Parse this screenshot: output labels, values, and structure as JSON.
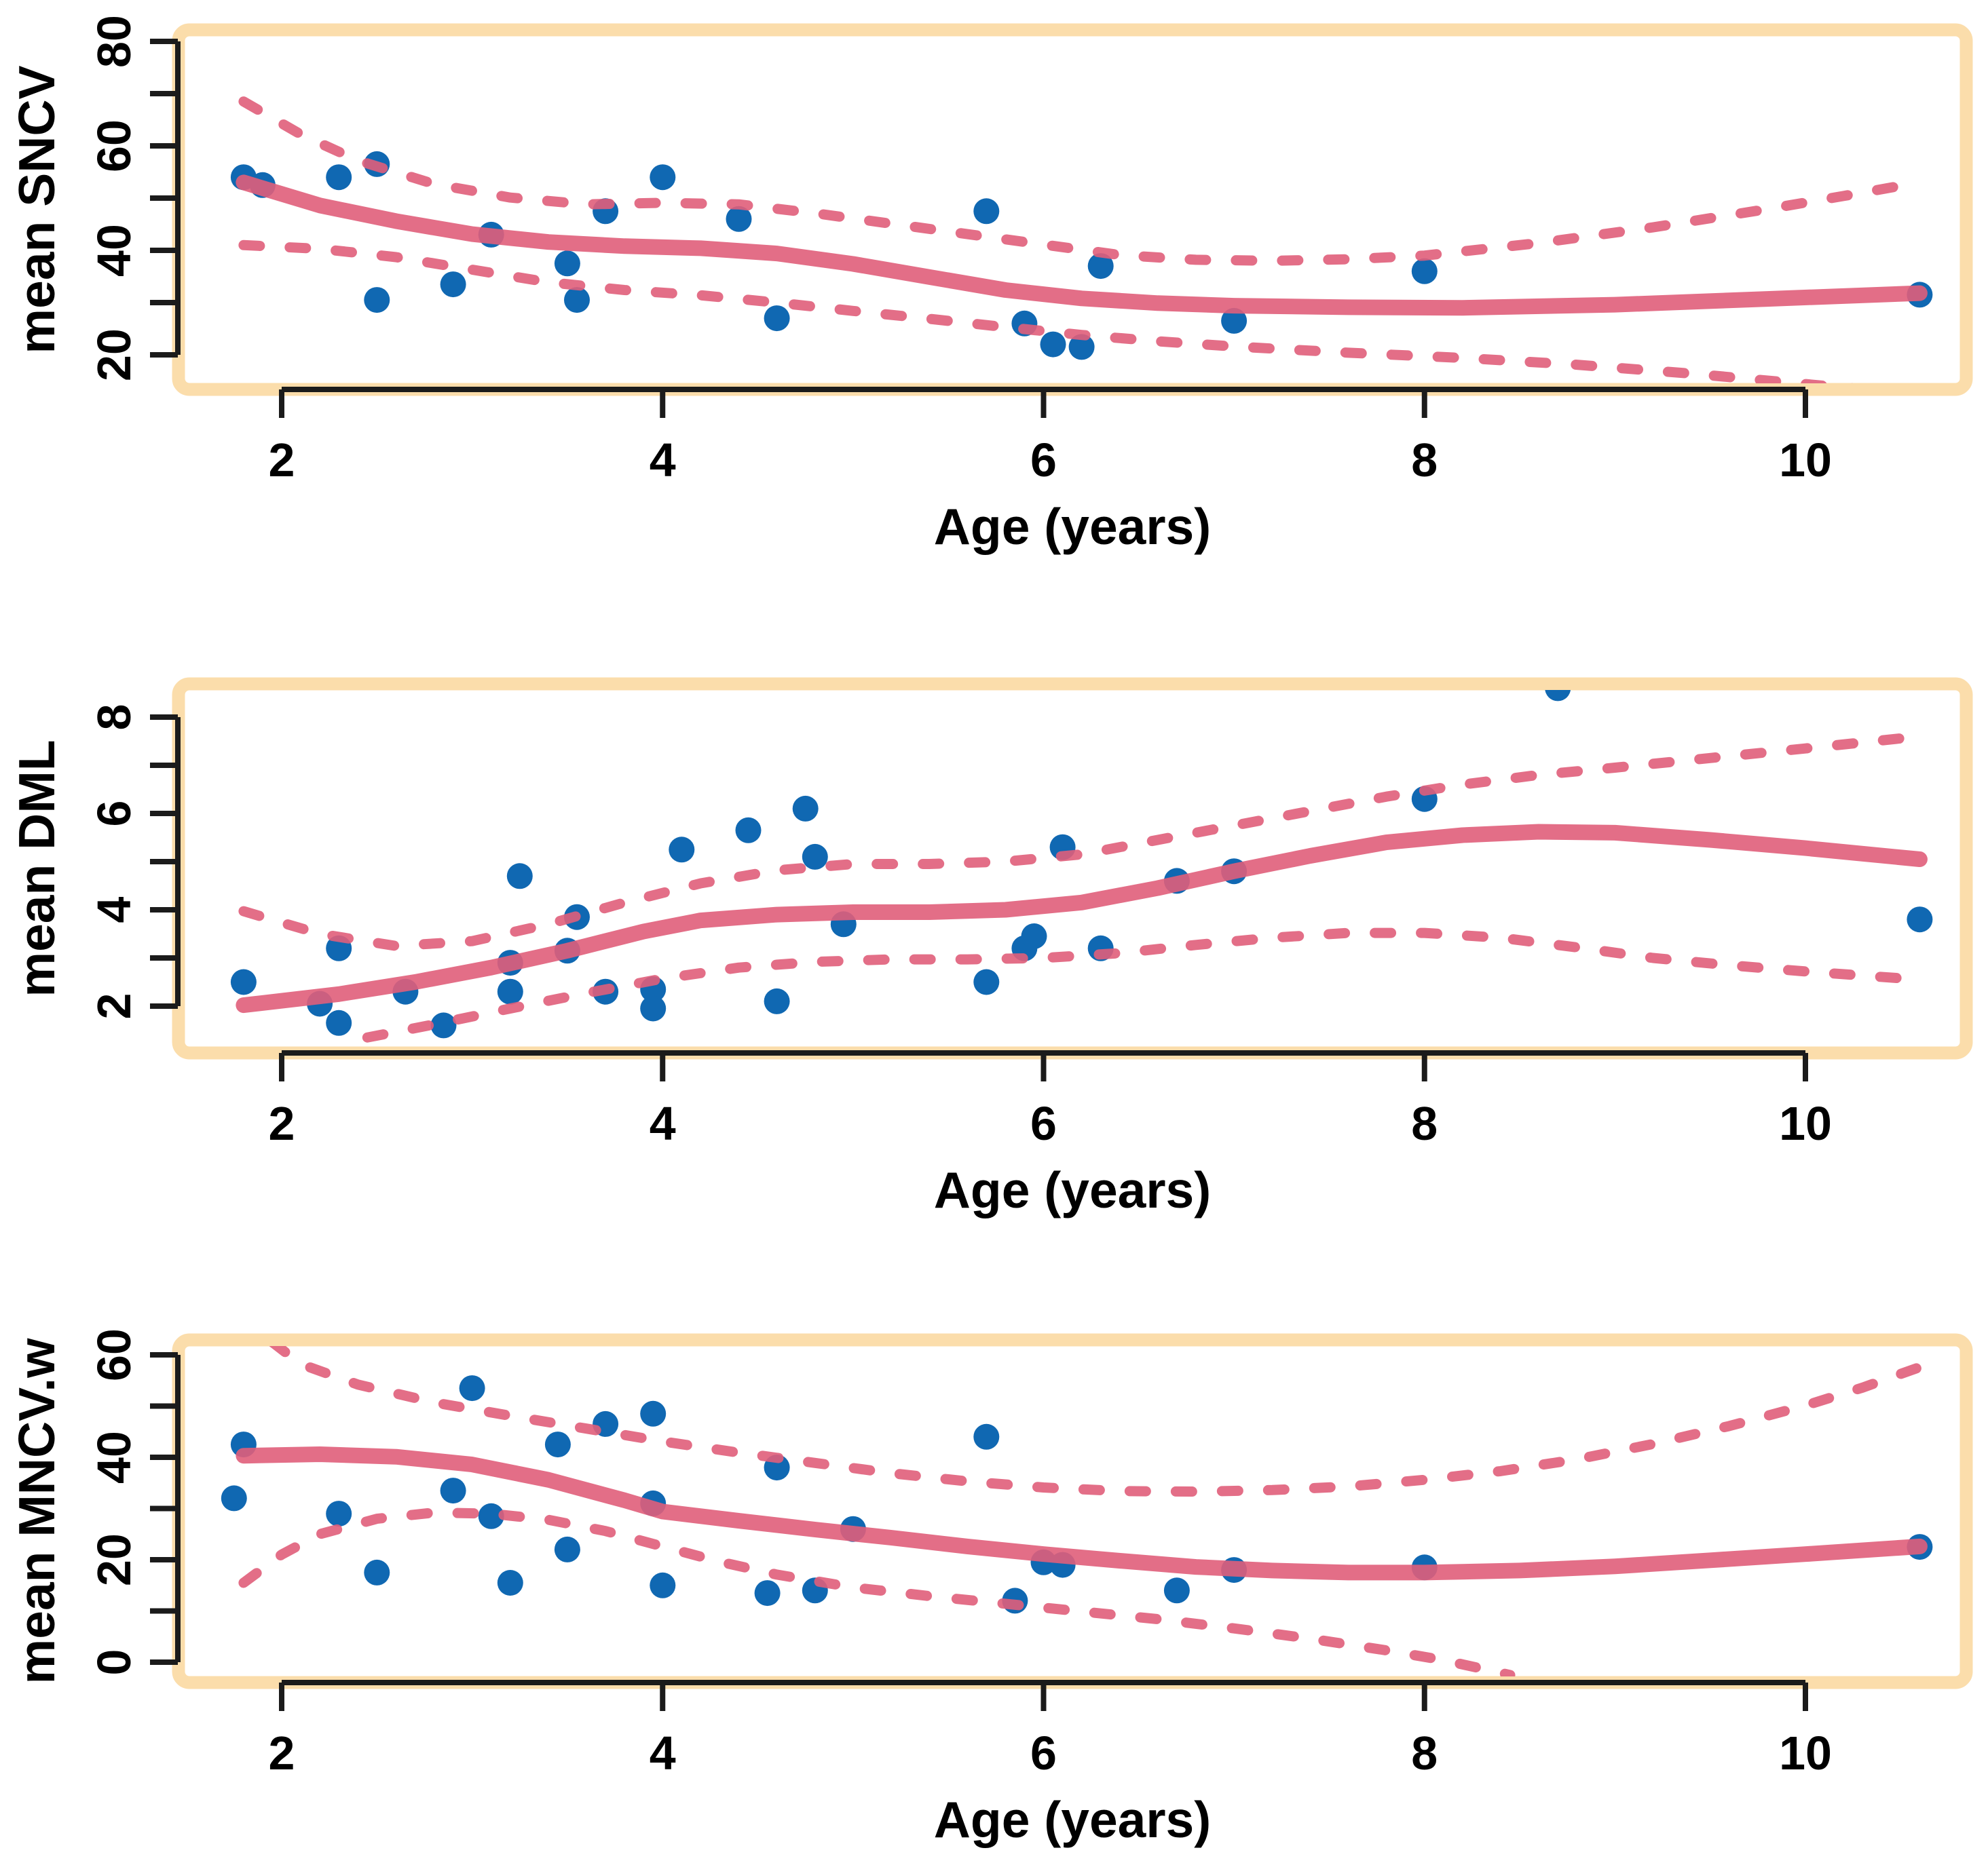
{
  "figure": {
    "type": "r-base-graphics-panel-figure",
    "panel_count": 3,
    "background": "#ffffff"
  },
  "colors": {
    "point": "#1068b2",
    "line": "#e05e7a",
    "frame": "#fbddab",
    "axis": "#1b1b1b",
    "text": "#000000",
    "plot_bg": "#ffffff"
  },
  "chart_data": [
    {
      "id": "sncv",
      "type": "scatter",
      "title": "",
      "xlabel": "Age (years)",
      "ylabel": "mean SNCV",
      "x_ticks": [
        2,
        4,
        6,
        8,
        10
      ],
      "y_ticks_labeled": [
        20,
        40,
        60,
        80
      ],
      "y_ticks_minor": [
        30,
        50,
        70
      ],
      "xlim": [
        1.46,
        10.85
      ],
      "ylim": [
        13.4,
        82.2
      ],
      "grid": false,
      "legend": "none",
      "points": [
        [
          1.8,
          54
        ],
        [
          1.9,
          52.5
        ],
        [
          2.3,
          54
        ],
        [
          2.5,
          56.5
        ],
        [
          2.5,
          30.5
        ],
        [
          2.9,
          33.5
        ],
        [
          3.1,
          43
        ],
        [
          3.5,
          37.5
        ],
        [
          3.55,
          30.5
        ],
        [
          3.7,
          47.5
        ],
        [
          4.0,
          54
        ],
        [
          4.4,
          46
        ],
        [
          4.6,
          27
        ],
        [
          5.7,
          47.5
        ],
        [
          5.9,
          26
        ],
        [
          6.05,
          22
        ],
        [
          6.2,
          21.5
        ],
        [
          6.3,
          37
        ],
        [
          7.0,
          26.5
        ],
        [
          8.0,
          36
        ],
        [
          10.6,
          31.5
        ]
      ],
      "series": [
        {
          "name": "loess_fit",
          "style": "solid",
          "xy": [
            [
              1.8,
              53
            ],
            [
              2.2,
              48.6
            ],
            [
              2.6,
              45.6
            ],
            [
              3.0,
              43.1
            ],
            [
              3.4,
              41.6
            ],
            [
              3.8,
              40.8
            ],
            [
              4.2,
              40.4
            ],
            [
              4.6,
              39.4
            ],
            [
              5.0,
              37.4
            ],
            [
              5.4,
              34.9
            ],
            [
              5.8,
              32.4
            ],
            [
              6.2,
              30.8
            ],
            [
              6.6,
              29.9
            ],
            [
              7.0,
              29.4
            ],
            [
              7.6,
              29.1
            ],
            [
              8.2,
              29.0
            ],
            [
              9.0,
              29.6
            ],
            [
              9.8,
              30.7
            ],
            [
              10.6,
              31.8
            ]
          ]
        },
        {
          "name": "ci_upper",
          "style": "dashed",
          "xy": [
            [
              1.8,
              68.5
            ],
            [
              2.1,
              62.2
            ],
            [
              2.4,
              57.2
            ],
            [
              2.8,
              52.7
            ],
            [
              3.2,
              50.1
            ],
            [
              3.6,
              48.8
            ],
            [
              4.0,
              49.1
            ],
            [
              4.4,
              48.8
            ],
            [
              4.8,
              47.1
            ],
            [
              5.2,
              45.1
            ],
            [
              5.6,
              43.1
            ],
            [
              6.0,
              41.1
            ],
            [
              6.4,
              39.1
            ],
            [
              6.8,
              38.2
            ],
            [
              7.2,
              38.0
            ],
            [
              7.6,
              38.3
            ],
            [
              8.0,
              39.0
            ],
            [
              8.6,
              41.4
            ],
            [
              9.2,
              44.4
            ],
            [
              9.8,
              47.9
            ],
            [
              10.2,
              50.4
            ],
            [
              10.6,
              53.0
            ]
          ]
        },
        {
          "name": "ci_lower",
          "style": "dashed",
          "xy": [
            [
              1.8,
              41.0
            ],
            [
              2.2,
              40.3
            ],
            [
              2.6,
              38.7
            ],
            [
              3.0,
              36.3
            ],
            [
              3.4,
              33.9
            ],
            [
              3.8,
              32.4
            ],
            [
              4.2,
              31.4
            ],
            [
              4.6,
              30.0
            ],
            [
              5.0,
              28.4
            ],
            [
              5.4,
              26.9
            ],
            [
              5.8,
              25.3
            ],
            [
              6.2,
              23.8
            ],
            [
              6.6,
              22.6
            ],
            [
              7.0,
              21.6
            ],
            [
              7.6,
              20.4
            ],
            [
              8.2,
              19.4
            ],
            [
              8.8,
              18.1
            ],
            [
              9.4,
              16.4
            ],
            [
              10.0,
              14.4
            ],
            [
              10.6,
              12.4
            ]
          ]
        }
      ]
    },
    {
      "id": "dml",
      "type": "scatter",
      "title": "",
      "xlabel": "Age (years)",
      "ylabel": "mean DML",
      "x_ticks": [
        2,
        4,
        6,
        8,
        10
      ],
      "y_ticks_labeled": [
        2,
        4,
        6,
        8
      ],
      "y_ticks_minor": [
        3,
        5,
        7
      ],
      "xlim": [
        1.46,
        10.85
      ],
      "ylim": [
        1.03,
        8.69
      ],
      "grid": false,
      "legend": "none",
      "points": [
        [
          1.8,
          2.5
        ],
        [
          2.2,
          2.05
        ],
        [
          2.3,
          1.65
        ],
        [
          2.3,
          3.2
        ],
        [
          2.65,
          2.3
        ],
        [
          2.85,
          1.6
        ],
        [
          3.2,
          2.3
        ],
        [
          3.2,
          2.9
        ],
        [
          3.25,
          4.7
        ],
        [
          3.5,
          3.15
        ],
        [
          3.55,
          3.85
        ],
        [
          3.7,
          2.3
        ],
        [
          3.95,
          2.35
        ],
        [
          3.95,
          1.95
        ],
        [
          4.1,
          5.25
        ],
        [
          4.45,
          5.65
        ],
        [
          4.75,
          6.1
        ],
        [
          4.8,
          5.1
        ],
        [
          4.95,
          3.7
        ],
        [
          4.6,
          2.1
        ],
        [
          5.7,
          2.5
        ],
        [
          5.9,
          3.2
        ],
        [
          5.95,
          3.45
        ],
        [
          6.1,
          5.3
        ],
        [
          6.3,
          3.2
        ],
        [
          6.7,
          4.6
        ],
        [
          7.0,
          4.8
        ],
        [
          8.0,
          6.3
        ],
        [
          8.7,
          8.6
        ],
        [
          10.6,
          3.8
        ]
      ],
      "series": [
        {
          "name": "loess_fit",
          "style": "solid",
          "xy": [
            [
              1.8,
              2.02
            ],
            [
              2.3,
              2.25
            ],
            [
              2.7,
              2.5
            ],
            [
              3.1,
              2.8
            ],
            [
              3.5,
              3.15
            ],
            [
              3.9,
              3.55
            ],
            [
              4.2,
              3.78
            ],
            [
              4.6,
              3.9
            ],
            [
              5.0,
              3.95
            ],
            [
              5.4,
              3.95
            ],
            [
              5.8,
              4.0
            ],
            [
              6.2,
              4.15
            ],
            [
              6.6,
              4.45
            ],
            [
              7.0,
              4.8
            ],
            [
              7.4,
              5.12
            ],
            [
              7.8,
              5.4
            ],
            [
              8.2,
              5.55
            ],
            [
              8.6,
              5.62
            ],
            [
              9.0,
              5.6
            ],
            [
              9.5,
              5.45
            ],
            [
              10.0,
              5.28
            ],
            [
              10.6,
              5.05
            ]
          ]
        },
        {
          "name": "ci_upper",
          "style": "dashed",
          "xy": [
            [
              1.8,
              3.97
            ],
            [
              2.2,
              3.5
            ],
            [
              2.6,
              3.25
            ],
            [
              3.0,
              3.35
            ],
            [
              3.4,
              3.7
            ],
            [
              3.8,
              4.15
            ],
            [
              4.2,
              4.55
            ],
            [
              4.6,
              4.82
            ],
            [
              5.0,
              4.95
            ],
            [
              5.4,
              4.95
            ],
            [
              5.8,
              5.0
            ],
            [
              6.2,
              5.15
            ],
            [
              6.6,
              5.45
            ],
            [
              7.0,
              5.75
            ],
            [
              7.4,
              6.05
            ],
            [
              7.8,
              6.35
            ],
            [
              8.2,
              6.6
            ],
            [
              8.6,
              6.8
            ],
            [
              9.0,
              6.95
            ],
            [
              9.5,
              7.15
            ],
            [
              10.0,
              7.35
            ],
            [
              10.6,
              7.6
            ]
          ]
        },
        {
          "name": "ci_lower",
          "style": "dashed",
          "xy": [
            [
              2.45,
              1.35
            ],
            [
              2.8,
              1.62
            ],
            [
              3.2,
              1.95
            ],
            [
              3.6,
              2.27
            ],
            [
              4.0,
              2.57
            ],
            [
              4.4,
              2.8
            ],
            [
              4.8,
              2.92
            ],
            [
              5.2,
              2.97
            ],
            [
              5.6,
              2.97
            ],
            [
              6.0,
              3.0
            ],
            [
              6.4,
              3.1
            ],
            [
              6.8,
              3.27
            ],
            [
              7.2,
              3.42
            ],
            [
              7.6,
              3.52
            ],
            [
              8.0,
              3.52
            ],
            [
              8.4,
              3.42
            ],
            [
              8.8,
              3.22
            ],
            [
              9.2,
              3.0
            ],
            [
              9.6,
              2.85
            ],
            [
              10.0,
              2.72
            ],
            [
              10.6,
              2.55
            ]
          ]
        }
      ]
    },
    {
      "id": "mncvw",
      "type": "scatter",
      "title": "",
      "xlabel": "Age (years)",
      "ylabel": "mean MNCV.w",
      "x_ticks": [
        2,
        4,
        6,
        8,
        10
      ],
      "y_ticks_labeled": [
        0,
        20,
        40,
        60
      ],
      "y_ticks_minor": [
        10,
        30,
        50
      ],
      "xlim": [
        1.46,
        10.85
      ],
      "ylim": [
        -3.97,
        62.9
      ],
      "grid": false,
      "legend": "none",
      "points": [
        [
          1.75,
          32
        ],
        [
          1.8,
          42.5
        ],
        [
          2.3,
          29
        ],
        [
          2.5,
          17.5
        ],
        [
          2.9,
          33.5
        ],
        [
          3.0,
          53.5
        ],
        [
          3.1,
          28.5
        ],
        [
          3.2,
          15.5
        ],
        [
          3.45,
          42.5
        ],
        [
          3.5,
          22
        ],
        [
          3.7,
          46.5
        ],
        [
          3.95,
          48.5
        ],
        [
          3.95,
          31
        ],
        [
          4.0,
          15
        ],
        [
          4.55,
          13.5
        ],
        [
          4.6,
          38
        ],
        [
          4.8,
          14
        ],
        [
          5.0,
          26
        ],
        [
          5.7,
          44
        ],
        [
          5.85,
          12
        ],
        [
          6.0,
          19.5
        ],
        [
          6.1,
          19
        ],
        [
          6.7,
          14
        ],
        [
          7.0,
          18
        ],
        [
          8.0,
          18.5
        ],
        [
          10.6,
          22.5
        ]
      ],
      "series": [
        {
          "name": "loess_fit",
          "style": "solid",
          "xy": [
            [
              1.8,
              40.3
            ],
            [
              2.2,
              40.6
            ],
            [
              2.6,
              40.1
            ],
            [
              3.0,
              38.6
            ],
            [
              3.4,
              35.6
            ],
            [
              3.8,
              31.6
            ],
            [
              4.0,
              29.4
            ],
            [
              4.4,
              27.6
            ],
            [
              4.8,
              25.9
            ],
            [
              5.2,
              24.3
            ],
            [
              5.6,
              22.6
            ],
            [
              6.0,
              21.1
            ],
            [
              6.4,
              19.8
            ],
            [
              6.8,
              18.6
            ],
            [
              7.2,
              17.9
            ],
            [
              7.6,
              17.5
            ],
            [
              8.0,
              17.5
            ],
            [
              8.5,
              17.9
            ],
            [
              9.0,
              18.7
            ],
            [
              9.5,
              19.9
            ],
            [
              10.0,
              21.1
            ],
            [
              10.6,
              22.6
            ]
          ]
        },
        {
          "name": "ci_upper",
          "style": "dashed",
          "xy": [
            [
              1.95,
              62.5
            ],
            [
              2.1,
              58.2
            ],
            [
              2.4,
              54.2
            ],
            [
              2.8,
              50.7
            ],
            [
              3.2,
              48.1
            ],
            [
              3.6,
              45.6
            ],
            [
              4.0,
              43.1
            ],
            [
              4.4,
              40.9
            ],
            [
              4.8,
              38.9
            ],
            [
              5.2,
              36.9
            ],
            [
              5.6,
              35.3
            ],
            [
              6.0,
              34.1
            ],
            [
              6.4,
              33.4
            ],
            [
              6.8,
              33.3
            ],
            [
              7.2,
              33.6
            ],
            [
              7.6,
              34.3
            ],
            [
              8.0,
              35.6
            ],
            [
              8.4,
              37.3
            ],
            [
              8.8,
              39.6
            ],
            [
              9.2,
              42.6
            ],
            [
              9.6,
              46.1
            ],
            [
              10.0,
              50.1
            ],
            [
              10.3,
              53.6
            ],
            [
              10.6,
              57.6
            ]
          ]
        },
        {
          "name": "ci_lower",
          "style": "dashed",
          "xy": [
            [
              1.8,
              15.5
            ],
            [
              2.0,
              21.0
            ],
            [
              2.2,
              25.0
            ],
            [
              2.5,
              28.0
            ],
            [
              2.8,
              29.2
            ],
            [
              3.1,
              29.0
            ],
            [
              3.4,
              27.8
            ],
            [
              3.7,
              25.6
            ],
            [
              4.0,
              22.6
            ],
            [
              4.3,
              19.6
            ],
            [
              4.6,
              17.1
            ],
            [
              5.0,
              14.6
            ],
            [
              5.4,
              12.9
            ],
            [
              5.8,
              11.4
            ],
            [
              6.2,
              9.9
            ],
            [
              6.6,
              8.4
            ],
            [
              7.0,
              6.6
            ],
            [
              7.4,
              4.6
            ],
            [
              7.8,
              2.3
            ],
            [
              8.1,
              0.4
            ],
            [
              8.45,
              -2.5
            ]
          ]
        }
      ]
    }
  ]
}
